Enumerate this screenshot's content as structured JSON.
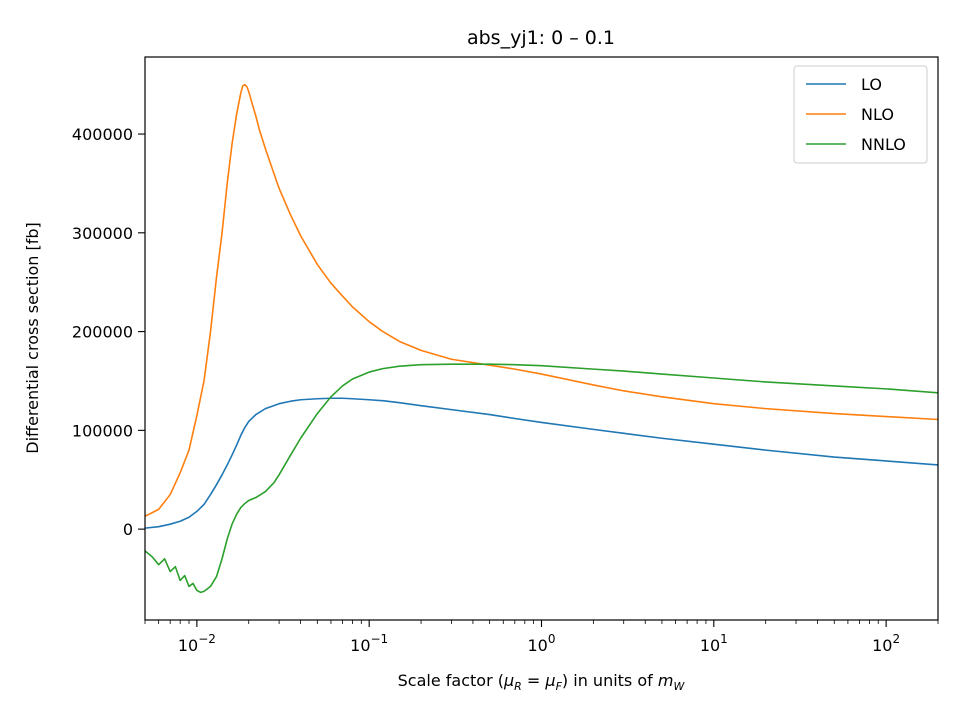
{
  "chart_data": {
    "type": "line",
    "title": "abs_yj1: 0 – 0.1",
    "xlabel": "Scale factor (μR = μF) in units of mW",
    "xlabel_parts": {
      "prefix": "Scale factor (",
      "mu": "μ",
      "sub_r": "R",
      "equals": " = ",
      "sub_f": "F",
      "middle": ") in units of ",
      "m": "m",
      "sub_w": "W"
    },
    "ylabel": "Differential cross section [fb]",
    "xscale": "log",
    "xlim": [
      0.005,
      200
    ],
    "ylim": [
      -92000,
      478000
    ],
    "x_ticks": [
      {
        "value": 0.01,
        "base": "10",
        "exp": "−2"
      },
      {
        "value": 0.1,
        "base": "10",
        "exp": "−1"
      },
      {
        "value": 1,
        "base": "10",
        "exp": "0"
      },
      {
        "value": 10,
        "base": "10",
        "exp": "1"
      },
      {
        "value": 100,
        "base": "10",
        "exp": "2"
      }
    ],
    "y_ticks": [
      {
        "value": 0,
        "label": "0"
      },
      {
        "value": 100000,
        "label": "100000"
      },
      {
        "value": 200000,
        "label": "200000"
      },
      {
        "value": 300000,
        "label": "300000"
      },
      {
        "value": 400000,
        "label": "400000"
      }
    ],
    "grid": false,
    "legend_position": "top-right",
    "series": [
      {
        "name": "LO",
        "color": "#1f77b4",
        "x": [
          0.005,
          0.006,
          0.007,
          0.008,
          0.009,
          0.01,
          0.011,
          0.012,
          0.013,
          0.014,
          0.015,
          0.016,
          0.017,
          0.018,
          0.019,
          0.02,
          0.022,
          0.025,
          0.03,
          0.035,
          0.04,
          0.05,
          0.06,
          0.07,
          0.08,
          0.1,
          0.12,
          0.15,
          0.2,
          0.3,
          0.5,
          0.7,
          1,
          2,
          3,
          5,
          10,
          20,
          50,
          100,
          200
        ],
        "y": [
          1000,
          2500,
          5000,
          8000,
          12000,
          18000,
          25000,
          35000,
          45000,
          55000,
          65000,
          75000,
          85000,
          95000,
          103000,
          109000,
          116000,
          122000,
          127000,
          129500,
          131000,
          132000,
          132500,
          132500,
          132000,
          131000,
          130000,
          128000,
          125000,
          121000,
          116000,
          112000,
          108000,
          101000,
          97000,
          92000,
          86000,
          80000,
          73000,
          69000,
          65000
        ]
      },
      {
        "name": "NLO",
        "color": "#ff7f0e",
        "x": [
          0.005,
          0.006,
          0.007,
          0.008,
          0.009,
          0.01,
          0.011,
          0.012,
          0.013,
          0.014,
          0.015,
          0.016,
          0.017,
          0.018,
          0.0185,
          0.019,
          0.0195,
          0.02,
          0.021,
          0.022,
          0.023,
          0.025,
          0.028,
          0.03,
          0.035,
          0.04,
          0.05,
          0.06,
          0.07,
          0.08,
          0.1,
          0.12,
          0.15,
          0.2,
          0.3,
          0.5,
          0.7,
          1,
          2,
          3,
          5,
          10,
          20,
          50,
          100,
          200
        ],
        "y": [
          13000,
          20000,
          35000,
          57000,
          80000,
          115000,
          150000,
          200000,
          255000,
          300000,
          350000,
          390000,
          420000,
          442000,
          449000,
          450000,
          448000,
          443000,
          430000,
          418000,
          405000,
          385000,
          360000,
          345000,
          318000,
          297000,
          268000,
          249000,
          236000,
          225000,
          210000,
          200000,
          190000,
          181000,
          172000,
          166000,
          162000,
          157000,
          146000,
          140000,
          134000,
          127000,
          122000,
          117000,
          114000,
          111000
        ]
      },
      {
        "name": "NNLO",
        "color": "#2ca02c",
        "x": [
          0.005,
          0.0055,
          0.006,
          0.0065,
          0.007,
          0.0075,
          0.008,
          0.0085,
          0.009,
          0.0095,
          0.01,
          0.0105,
          0.011,
          0.012,
          0.013,
          0.014,
          0.015,
          0.016,
          0.017,
          0.018,
          0.019,
          0.02,
          0.022,
          0.025,
          0.028,
          0.03,
          0.035,
          0.04,
          0.05,
          0.06,
          0.07,
          0.08,
          0.1,
          0.12,
          0.15,
          0.2,
          0.3,
          0.5,
          0.7,
          1,
          2,
          3,
          5,
          10,
          20,
          50,
          100,
          200
        ],
        "y": [
          -22000,
          -28000,
          -36000,
          -30000,
          -43000,
          -38000,
          -52000,
          -47000,
          -58000,
          -55000,
          -62000,
          -64000,
          -63000,
          -58000,
          -48000,
          -30000,
          -10000,
          5000,
          15000,
          22000,
          26000,
          29000,
          32000,
          38000,
          47000,
          55000,
          75000,
          92000,
          117000,
          134000,
          145000,
          152000,
          159000,
          162500,
          165000,
          166500,
          167000,
          167000,
          166500,
          165500,
          162000,
          160000,
          157000,
          153000,
          149000,
          145000,
          142000,
          138000
        ]
      }
    ]
  }
}
